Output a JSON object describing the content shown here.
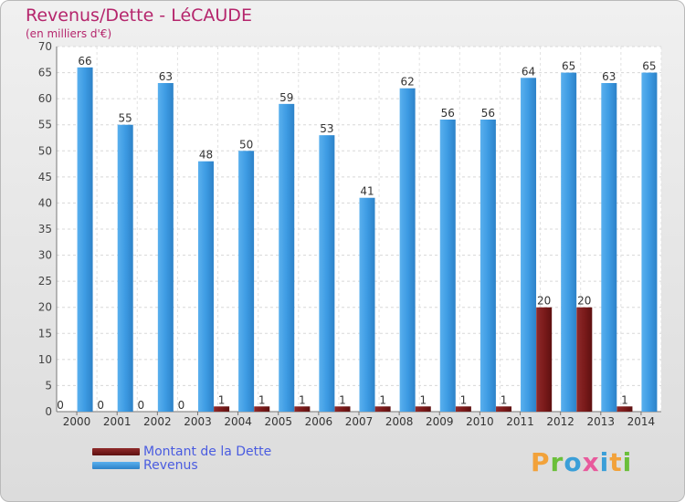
{
  "chart_data": {
    "type": "bar",
    "title": "Revenus/Dette - LéCAUDE",
    "subtitle": "(en milliers d'€)",
    "categories": [
      "2000",
      "2001",
      "2002",
      "2003",
      "2004",
      "2005",
      "2006",
      "2007",
      "2008",
      "2009",
      "2010",
      "2011",
      "2012",
      "2013",
      "2014"
    ],
    "series": [
      {
        "name": "Montant de la Dette",
        "values": [
          0,
          0,
          0,
          0,
          1,
          1,
          1,
          1,
          1,
          1,
          1,
          1,
          20,
          20,
          1
        ],
        "color": "#7b1b1b"
      },
      {
        "name": "Revenus",
        "values": [
          66,
          55,
          63,
          48,
          50,
          59,
          53,
          41,
          62,
          56,
          56,
          64,
          65,
          63,
          65
        ],
        "color": "#3d9be3"
      }
    ],
    "ylim": [
      0,
      70
    ],
    "yticks": [
      0,
      5,
      10,
      15,
      20,
      25,
      30,
      35,
      40,
      45,
      50,
      55,
      60,
      65,
      70
    ],
    "grid": true,
    "legend_position": "bottom-left"
  },
  "logo_text": "Proxiti"
}
